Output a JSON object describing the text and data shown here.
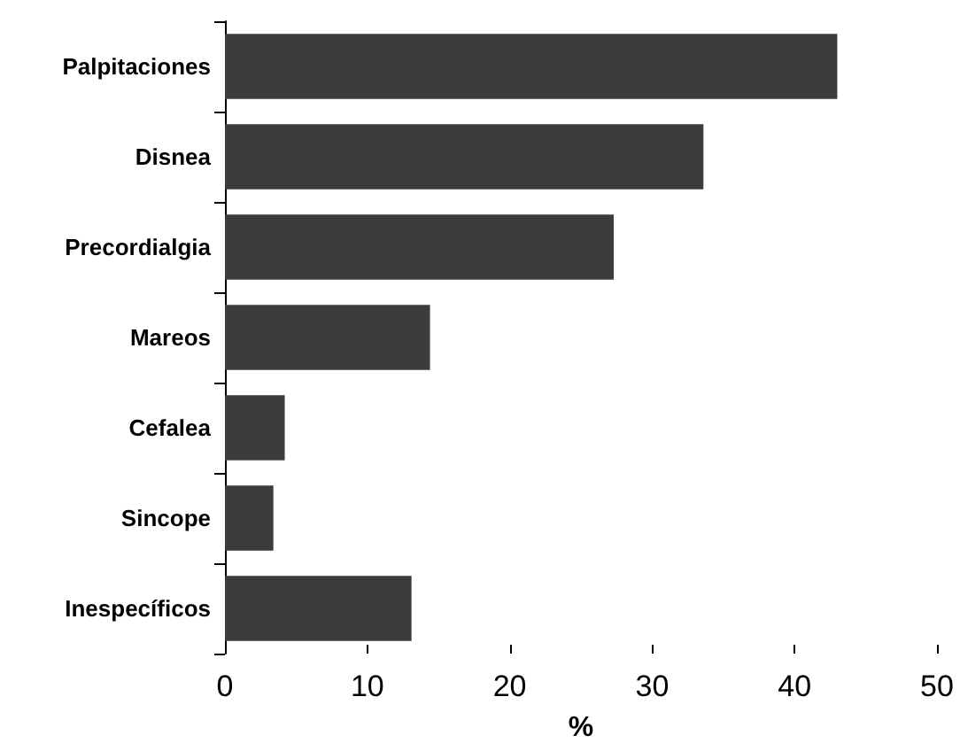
{
  "chart_data": {
    "type": "bar",
    "orientation": "horizontal",
    "xlabel": "%",
    "categories": [
      "Palpitaciones",
      "Disnea",
      "Precordialgia",
      "Mareos",
      "Cefalea",
      "Sincope",
      "Inespecíficos"
    ],
    "values": [
      43,
      33.6,
      27.3,
      14.4,
      4.2,
      3.4,
      13.1
    ],
    "color": "#3c3c3c",
    "xlim": [
      0,
      50
    ],
    "xticks": [
      0,
      10,
      20,
      30,
      40,
      50
    ],
    "grid": false
  }
}
